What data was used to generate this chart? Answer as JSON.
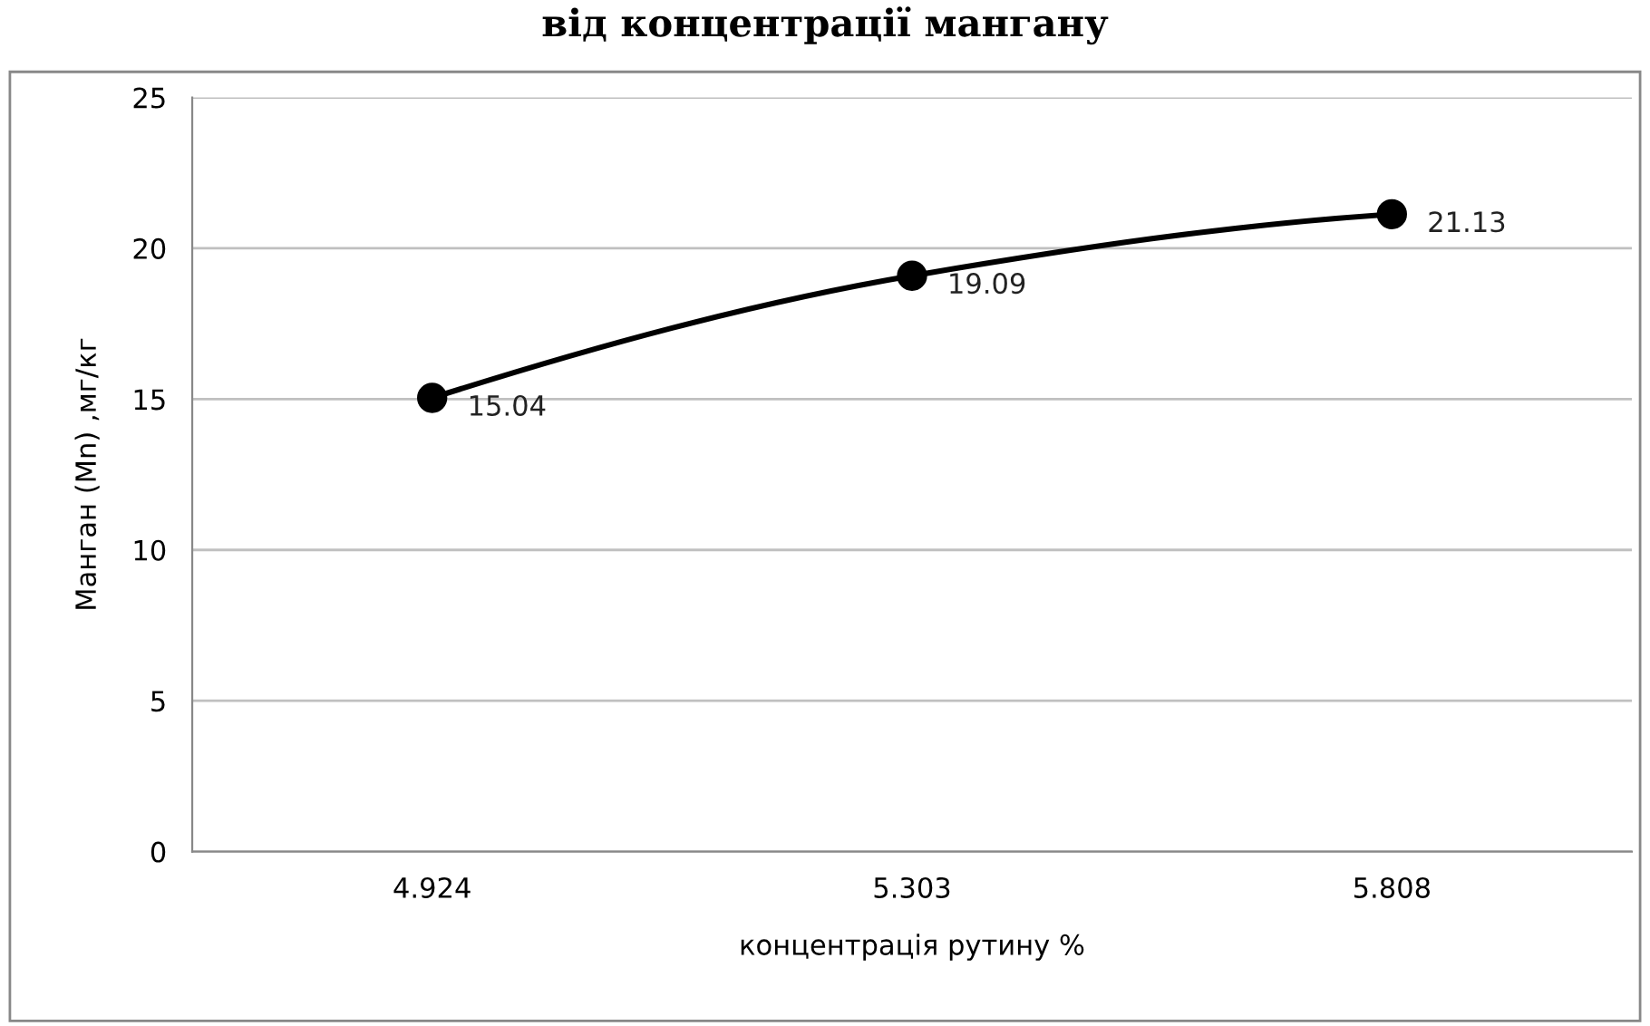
{
  "chart_data": {
    "type": "line",
    "title": "від концентрації мангану",
    "xlabel": "концентрація рутину %",
    "ylabel": "Манган (Mn) ,мг/кг",
    "categories": [
      "4.924",
      "5.303",
      "5.808"
    ],
    "series": [
      {
        "color": "#000000",
        "values": [
          15.04,
          19.09,
          21.13
        ]
      }
    ],
    "ylim": [
      0,
      25
    ],
    "yticks": [
      0,
      5,
      10,
      15,
      20,
      25
    ],
    "grid": "y",
    "marker": "circle",
    "line_style": "solid",
    "data_labels": true
  }
}
